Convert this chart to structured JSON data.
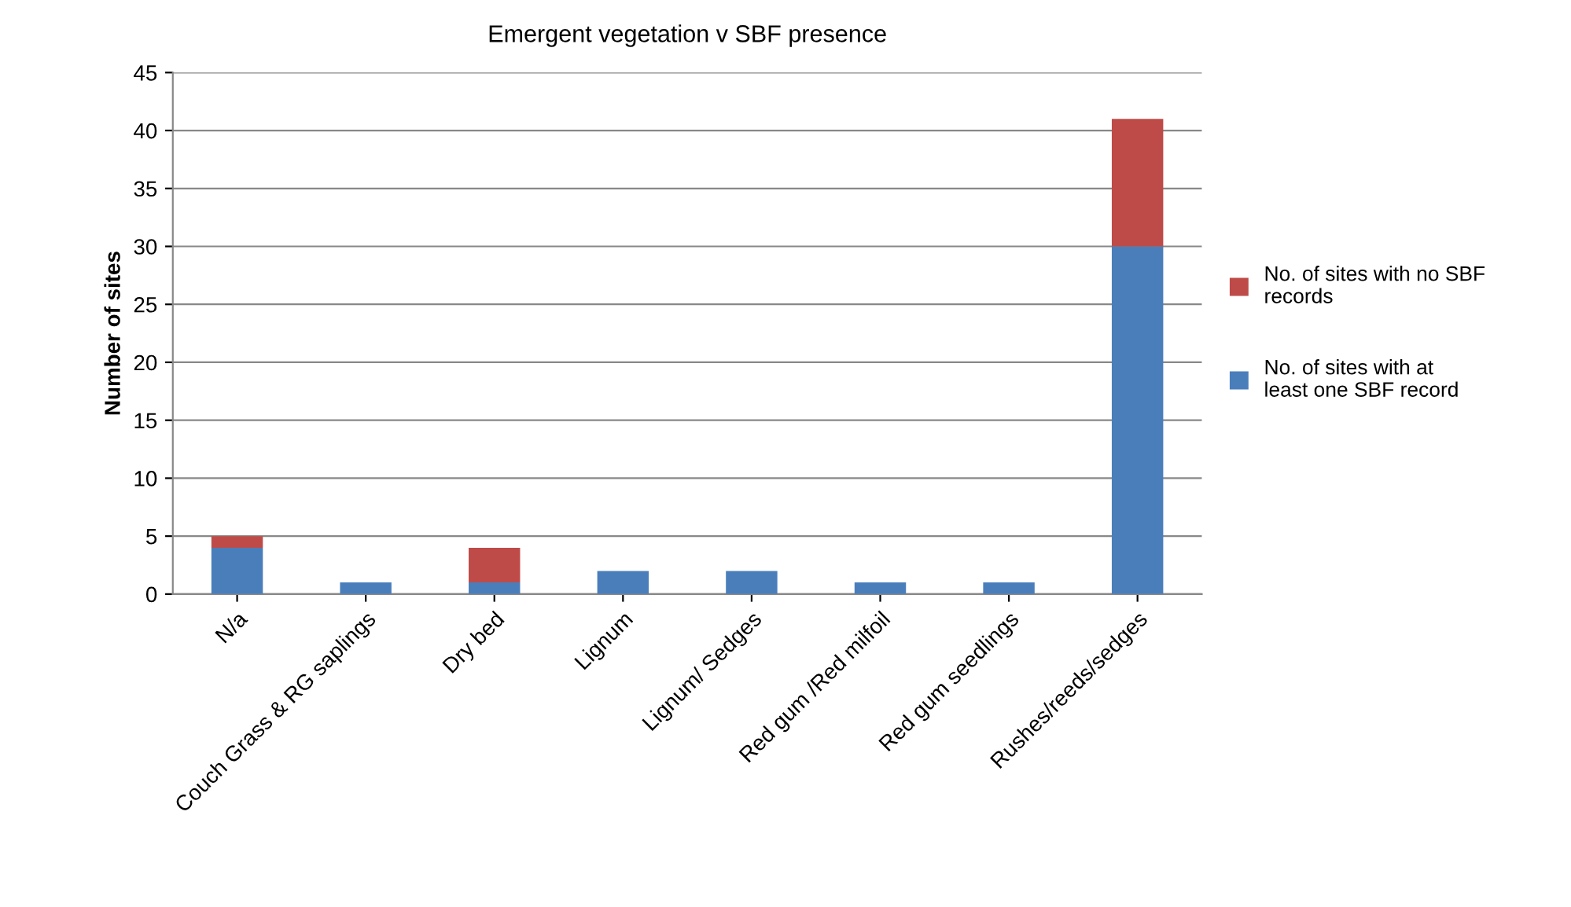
{
  "chart_data": {
    "type": "bar",
    "title": "Emergent vegetation v SBF presence",
    "ylabel": "Number of sites",
    "categories": [
      "N/a",
      "Couch Grass & RG saplings",
      "Dry bed",
      "Lignum",
      "Lignum/ Sedges",
      "Red gum /Red milfoil",
      "Red gum seedlings",
      "Rushes/reeds/sedges"
    ],
    "series": [
      {
        "name": "No. of sites with at least one SBF record",
        "color": "#4a7ebb",
        "values": [
          4,
          1,
          1,
          2,
          2,
          1,
          1,
          30
        ]
      },
      {
        "name": "No. of sites with no SBF records",
        "color": "#be4b48",
        "values": [
          1,
          0,
          3,
          0,
          0,
          0,
          0,
          11
        ]
      }
    ],
    "stacked": true,
    "ylim": [
      0,
      45
    ],
    "yticks": [
      0,
      5,
      10,
      15,
      20,
      25,
      30,
      35,
      40,
      45
    ],
    "grid": "y",
    "legend": "right"
  }
}
